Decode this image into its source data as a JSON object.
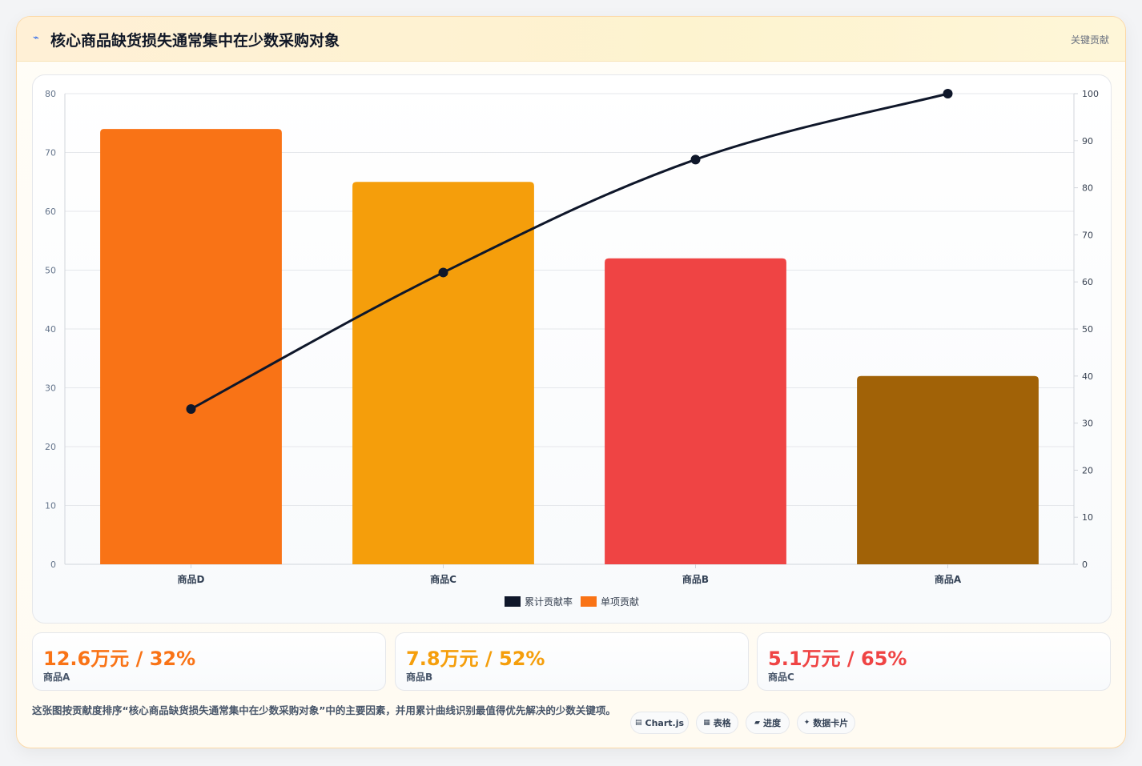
{
  "header": {
    "icon": "lightning-icon",
    "title": "核心商品缺货损失通常集中在少数采购对象",
    "tag": "关键贡献"
  },
  "chart_data": {
    "type": "bar",
    "categories": [
      "商品D",
      "商品C",
      "商品B",
      "商品A"
    ],
    "series": [
      {
        "name": "单项贡献",
        "type": "bar",
        "axis": "left",
        "values": [
          74,
          65,
          52,
          32
        ],
        "colors": [
          "#f97316",
          "#f59e0b",
          "#ef4444",
          "#a16207"
        ]
      },
      {
        "name": "累计贡献率",
        "type": "line",
        "axis": "right",
        "values": [
          33,
          62,
          86,
          100
        ],
        "color": "#0f172a"
      }
    ],
    "ylim": [
      0,
      80
    ],
    "y_ticks": [
      0,
      10,
      20,
      30,
      40,
      50,
      60,
      70,
      80
    ],
    "y2lim": [
      0,
      100
    ],
    "y2_ticks": [
      0,
      10,
      20,
      30,
      40,
      50,
      60,
      70,
      80,
      90,
      100
    ],
    "grid": true,
    "legend_position": "bottom"
  },
  "legend": [
    {
      "label": "累计贡献率",
      "color": "#0f172a"
    },
    {
      "label": "单项贡献",
      "color": "#f97316"
    }
  ],
  "stats": [
    {
      "value": "12.6万元 / 32%",
      "label": "商品A",
      "color": "#f97316"
    },
    {
      "value": "7.8万元 / 52%",
      "label": "商品B",
      "color": "#f59e0b"
    },
    {
      "value": "5.1万元 / 65%",
      "label": "商品C",
      "color": "#ef4444"
    }
  ],
  "note": "这张图按贡献度排序“核心商品缺货损失通常集中在少数采购对象”中的主要因素，并用累计曲线识别最值得优先解决的少数关键项。",
  "chips": [
    {
      "icon": "chart-icon",
      "glyph": "▤",
      "label": "Chart.js"
    },
    {
      "icon": "table-icon",
      "glyph": "▦",
      "label": "表格"
    },
    {
      "icon": "progress-icon",
      "glyph": "▰",
      "label": "进度"
    },
    {
      "icon": "sparkle-icon",
      "glyph": "✦",
      "label": "数据卡片"
    }
  ]
}
